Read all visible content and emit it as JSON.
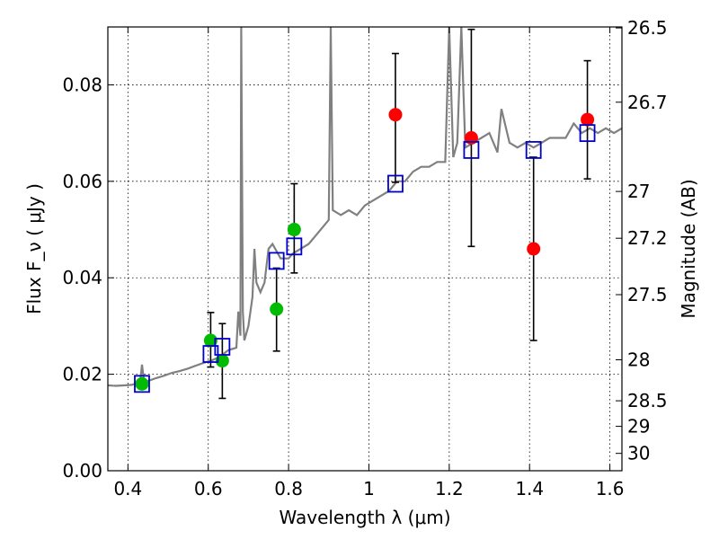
{
  "chart_data": {
    "type": "scatter",
    "xlabel": "Wavelength  λ (μm)",
    "ylabel": "Flux  F_ν  ( μJy )",
    "y2label": "Magnitude (AB)",
    "xlim": [
      0.35,
      1.63
    ],
    "ylim": [
      0.0,
      0.092
    ],
    "xticks": [
      0.4,
      0.6,
      0.8,
      1.0,
      1.2,
      1.4,
      1.6
    ],
    "xtick_labels": [
      "0.4",
      "0.6",
      "0.8",
      "1",
      "1.2",
      "1.4",
      "1.6"
    ],
    "yticks": [
      0.0,
      0.02,
      0.04,
      0.06,
      0.08
    ],
    "ytick_labels": [
      "0.00",
      "0.02",
      "0.04",
      "0.06",
      "0.08"
    ],
    "y2ticks": [
      {
        "label": "26.5",
        "flux": 0.0918
      },
      {
        "label": "26.7",
        "flux": 0.0764
      },
      {
        "label": "27",
        "flux": 0.0579
      },
      {
        "label": "27.2",
        "flux": 0.0482
      },
      {
        "label": "27.5",
        "flux": 0.0365
      },
      {
        "label": "28",
        "flux": 0.023
      },
      {
        "label": "28.5",
        "flux": 0.0145
      },
      {
        "label": "29",
        "flux": 0.0092
      },
      {
        "label": "30",
        "flux": 0.0036
      }
    ],
    "grid": true,
    "model_spectrum": {
      "color": "#808080",
      "points": [
        [
          0.35,
          0.0177
        ],
        [
          0.37,
          0.0176
        ],
        [
          0.39,
          0.0177
        ],
        [
          0.41,
          0.0178
        ],
        [
          0.42,
          0.0181
        ],
        [
          0.43,
          0.0182
        ],
        [
          0.435,
          0.022
        ],
        [
          0.44,
          0.0186
        ],
        [
          0.45,
          0.0186
        ],
        [
          0.47,
          0.0192
        ],
        [
          0.49,
          0.0197
        ],
        [
          0.51,
          0.0203
        ],
        [
          0.53,
          0.0207
        ],
        [
          0.55,
          0.0212
        ],
        [
          0.57,
          0.0218
        ],
        [
          0.59,
          0.0224
        ],
        [
          0.61,
          0.0229
        ],
        [
          0.63,
          0.0237
        ],
        [
          0.65,
          0.025
        ],
        [
          0.67,
          0.0255
        ],
        [
          0.675,
          0.033
        ],
        [
          0.68,
          0.028
        ],
        [
          0.682,
          0.092
        ],
        [
          0.686,
          0.033
        ],
        [
          0.69,
          0.027
        ],
        [
          0.7,
          0.03
        ],
        [
          0.71,
          0.036
        ],
        [
          0.715,
          0.046
        ],
        [
          0.72,
          0.039
        ],
        [
          0.73,
          0.037
        ],
        [
          0.74,
          0.039
        ],
        [
          0.75,
          0.046
        ],
        [
          0.76,
          0.047
        ],
        [
          0.78,
          0.044
        ],
        [
          0.8,
          0.044
        ],
        [
          0.81,
          0.045
        ],
        [
          0.83,
          0.046
        ],
        [
          0.85,
          0.047
        ],
        [
          0.87,
          0.049
        ],
        [
          0.89,
          0.051
        ],
        [
          0.9,
          0.052
        ],
        [
          0.905,
          0.092
        ],
        [
          0.91,
          0.054
        ],
        [
          0.93,
          0.053
        ],
        [
          0.95,
          0.054
        ],
        [
          0.97,
          0.053
        ],
        [
          0.99,
          0.055
        ],
        [
          1.01,
          0.056
        ],
        [
          1.03,
          0.057
        ],
        [
          1.05,
          0.058
        ],
        [
          1.07,
          0.06
        ],
        [
          1.09,
          0.06
        ],
        [
          1.11,
          0.062
        ],
        [
          1.13,
          0.063
        ],
        [
          1.15,
          0.063
        ],
        [
          1.17,
          0.064
        ],
        [
          1.19,
          0.064
        ],
        [
          1.2,
          0.092
        ],
        [
          1.21,
          0.065
        ],
        [
          1.22,
          0.068
        ],
        [
          1.23,
          0.092
        ],
        [
          1.24,
          0.067
        ],
        [
          1.26,
          0.068
        ],
        [
          1.28,
          0.069
        ],
        [
          1.3,
          0.07
        ],
        [
          1.32,
          0.066
        ],
        [
          1.33,
          0.075
        ],
        [
          1.35,
          0.068
        ],
        [
          1.37,
          0.067
        ],
        [
          1.39,
          0.068
        ],
        [
          1.41,
          0.067
        ],
        [
          1.43,
          0.068
        ],
        [
          1.45,
          0.069
        ],
        [
          1.47,
          0.069
        ],
        [
          1.49,
          0.069
        ],
        [
          1.51,
          0.072
        ],
        [
          1.53,
          0.07
        ],
        [
          1.55,
          0.071
        ],
        [
          1.57,
          0.07
        ],
        [
          1.59,
          0.071
        ],
        [
          1.61,
          0.07
        ],
        [
          1.63,
          0.071
        ]
      ]
    },
    "series": [
      {
        "marker": "circle",
        "color": "#00bb00",
        "points": [
          {
            "x": 0.435,
            "y": 0.018,
            "err_low": null,
            "err_high": null
          },
          {
            "x": 0.606,
            "y": 0.027,
            "err_low": 0.0215,
            "err_high": 0.0328
          },
          {
            "x": 0.635,
            "y": 0.0228,
            "err_low": 0.015,
            "err_high": 0.0305
          },
          {
            "x": 0.77,
            "y": 0.0335,
            "err_low": 0.0248,
            "err_high": 0.042
          },
          {
            "x": 0.814,
            "y": 0.05,
            "err_low": 0.041,
            "err_high": 0.0595
          }
        ]
      },
      {
        "marker": "circle",
        "color": "#ff0000",
        "points": [
          {
            "x": 1.066,
            "y": 0.0738,
            "err_low": 0.0598,
            "err_high": 0.0865
          },
          {
            "x": 1.255,
            "y": 0.069,
            "err_low": 0.0465,
            "err_high": 0.0915
          },
          {
            "x": 1.41,
            "y": 0.046,
            "err_low": 0.027,
            "err_high": 0.065
          },
          {
            "x": 1.544,
            "y": 0.0728,
            "err_low": 0.0605,
            "err_high": 0.085
          }
        ]
      },
      {
        "marker": "open-square",
        "color": "#0000cc",
        "points": [
          {
            "x": 0.435,
            "y": 0.018
          },
          {
            "x": 0.606,
            "y": 0.0242
          },
          {
            "x": 0.635,
            "y": 0.0257
          },
          {
            "x": 0.77,
            "y": 0.0435
          },
          {
            "x": 0.814,
            "y": 0.0465
          },
          {
            "x": 1.066,
            "y": 0.0595
          },
          {
            "x": 1.255,
            "y": 0.0665
          },
          {
            "x": 1.41,
            "y": 0.0665
          },
          {
            "x": 1.544,
            "y": 0.07
          }
        ]
      }
    ]
  }
}
